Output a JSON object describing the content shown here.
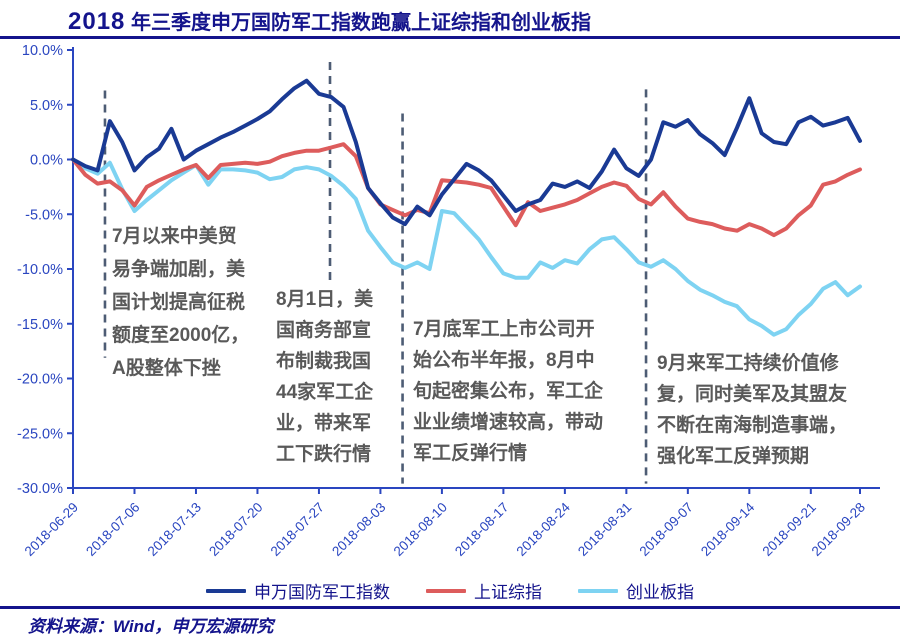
{
  "page": {
    "title": {
      "year": "2018",
      "rest": " 年三季度申万国防军工指数跑赢上证综指和创业板指"
    },
    "footer": {
      "source_label": "资料来源：Wind，申万宏源研究"
    }
  },
  "annotations": [
    {
      "text": "7月以来中美贸\n易争端加剧，美\n国计划提高征税\n额度至2000亿，\nA股整体下挫"
    },
    {
      "text": "8月1日，美\n国商务部宣\n布制裁我国\n44家军工企\n业，带来军\n工下跌行情"
    },
    {
      "text": "7月底军工上市公司开\n始公布半年报，8月中\n旬起密集公布，军工企\n业业绩增速较高，带动\n军工反弹行情"
    },
    {
      "text": "9月来军工持续价值修\n复，同时美军及其盟友\n不断在南海制造事端，\n强化军工反弹预期"
    }
  ],
  "chart_data": {
    "type": "line",
    "title": "2018年三季度申万国防军工指数跑赢上证综指和创业板指",
    "xlabel": "",
    "ylabel": "",
    "ylim": [
      -30,
      10
    ],
    "grid": false,
    "legend_position": "bottom",
    "axis_color": "#2A46C0",
    "event_line_color": "#4D5C74",
    "x": [
      "2018-06-29",
      "2018-07-02",
      "2018-07-03",
      "2018-07-04",
      "2018-07-05",
      "2018-07-06",
      "2018-07-09",
      "2018-07-10",
      "2018-07-11",
      "2018-07-12",
      "2018-07-13",
      "2018-07-16",
      "2018-07-17",
      "2018-07-18",
      "2018-07-19",
      "2018-07-20",
      "2018-07-23",
      "2018-07-24",
      "2018-07-25",
      "2018-07-26",
      "2018-07-27",
      "2018-07-30",
      "2018-07-31",
      "2018-08-01",
      "2018-08-02",
      "2018-08-03",
      "2018-08-06",
      "2018-08-07",
      "2018-08-08",
      "2018-08-09",
      "2018-08-10",
      "2018-08-13",
      "2018-08-14",
      "2018-08-15",
      "2018-08-16",
      "2018-08-17",
      "2018-08-20",
      "2018-08-21",
      "2018-08-22",
      "2018-08-23",
      "2018-08-24",
      "2018-08-27",
      "2018-08-28",
      "2018-08-29",
      "2018-08-30",
      "2018-08-31",
      "2018-09-03",
      "2018-09-04",
      "2018-09-05",
      "2018-09-06",
      "2018-09-07",
      "2018-09-10",
      "2018-09-11",
      "2018-09-12",
      "2018-09-13",
      "2018-09-14",
      "2018-09-17",
      "2018-09-18",
      "2018-09-19",
      "2018-09-20",
      "2018-09-21",
      "2018-09-25",
      "2018-09-26",
      "2018-09-27",
      "2018-09-28"
    ],
    "y_ticks": [
      {
        "value": 10,
        "label": "10.0%"
      },
      {
        "value": 5,
        "label": "5.0%"
      },
      {
        "value": 0,
        "label": "0.0%"
      },
      {
        "value": -5,
        "label": "-5.0%"
      },
      {
        "value": -10,
        "label": "-10.0%"
      },
      {
        "value": -15,
        "label": "-15.0%"
      },
      {
        "value": -20,
        "label": "-20.0%"
      },
      {
        "value": -25,
        "label": "-25.0%"
      },
      {
        "value": -30,
        "label": "-30.0%"
      }
    ],
    "x_tick_labels": [
      {
        "index": 0,
        "label": "2018-06-29"
      },
      {
        "index": 5,
        "label": "2018-07-06"
      },
      {
        "index": 10,
        "label": "2018-07-13"
      },
      {
        "index": 15,
        "label": "2018-07-20"
      },
      {
        "index": 20,
        "label": "2018-07-27"
      },
      {
        "index": 25,
        "label": "2018-08-03"
      },
      {
        "index": 30,
        "label": "2018-08-10"
      },
      {
        "index": 35,
        "label": "2018-08-17"
      },
      {
        "index": 40,
        "label": "2018-08-24"
      },
      {
        "index": 45,
        "label": "2018-08-31"
      },
      {
        "index": 50,
        "label": "2018-09-07"
      },
      {
        "index": 55,
        "label": "2018-09-14"
      },
      {
        "index": 60,
        "label": "2018-09-21"
      },
      {
        "index": 64,
        "label": "2018-09-28"
      }
    ],
    "event_lines": [
      {
        "index": 2.6,
        "v_top": 6.3,
        "v_bottom": -18.1
      },
      {
        "index": 20.9,
        "v_top": 8.9,
        "v_bottom": -11.2
      },
      {
        "index": 26.8,
        "v_top": 4.2,
        "v_bottom": -29.6
      },
      {
        "index": 46.6,
        "v_top": 6.4,
        "v_bottom": -29.6
      }
    ],
    "series": [
      {
        "name": "申万国防军工指数",
        "color": "#1A3A94",
        "values": [
          0.0,
          -0.6,
          -1.0,
          3.5,
          1.6,
          -1.0,
          0.2,
          1.0,
          2.8,
          0.0,
          0.8,
          1.4,
          2.0,
          2.5,
          3.1,
          3.7,
          4.4,
          5.5,
          6.5,
          7.2,
          6.0,
          5.7,
          4.8,
          1.6,
          -2.6,
          -4.0,
          -5.3,
          -5.9,
          -4.3,
          -5.1,
          -3.2,
          -1.8,
          -0.4,
          -1.0,
          -1.9,
          -3.3,
          -4.7,
          -4.1,
          -3.7,
          -2.2,
          -2.5,
          -2.0,
          -2.6,
          -1.1,
          0.9,
          -0.8,
          -1.5,
          0.0,
          3.4,
          3.0,
          3.6,
          2.3,
          1.5,
          0.4,
          2.9,
          5.6,
          2.4,
          1.6,
          1.4,
          3.4,
          3.9,
          3.1,
          3.4,
          3.8,
          1.7
        ]
      },
      {
        "name": "上证综指",
        "color": "#DD5C5C",
        "values": [
          0.0,
          -1.4,
          -2.2,
          -2.0,
          -2.8,
          -4.2,
          -2.5,
          -1.9,
          -1.4,
          -0.9,
          -0.5,
          -1.7,
          -0.5,
          -0.4,
          -0.3,
          -0.4,
          -0.2,
          0.3,
          0.6,
          0.8,
          0.8,
          1.1,
          1.4,
          0.3,
          -2.6,
          -4.1,
          -4.6,
          -5.1,
          -4.6,
          -4.9,
          -1.9,
          -2.0,
          -2.1,
          -2.3,
          -2.6,
          -4.3,
          -6.0,
          -3.9,
          -4.7,
          -4.4,
          -4.1,
          -3.7,
          -3.1,
          -2.5,
          -2.1,
          -2.4,
          -3.6,
          -4.1,
          -3.0,
          -4.3,
          -5.4,
          -5.7,
          -5.9,
          -6.3,
          -6.5,
          -5.9,
          -6.3,
          -6.9,
          -6.3,
          -5.1,
          -4.2,
          -2.3,
          -2.0,
          -1.4,
          -0.9
        ]
      },
      {
        "name": "创业板指",
        "color": "#7ED3F2",
        "values": [
          0.0,
          -0.8,
          -1.3,
          -0.3,
          -2.7,
          -4.7,
          -3.7,
          -2.8,
          -1.9,
          -1.2,
          -0.5,
          -2.3,
          -0.9,
          -0.9,
          -1.0,
          -1.2,
          -1.8,
          -1.6,
          -0.9,
          -0.7,
          -0.9,
          -1.5,
          -2.4,
          -3.6,
          -6.5,
          -8.0,
          -9.4,
          -9.9,
          -9.4,
          -10.0,
          -4.7,
          -4.9,
          -6.1,
          -7.3,
          -8.9,
          -10.4,
          -10.8,
          -10.8,
          -9.4,
          -9.9,
          -9.2,
          -9.5,
          -8.2,
          -7.3,
          -7.1,
          -8.2,
          -9.4,
          -9.8,
          -9.2,
          -10.0,
          -11.1,
          -11.9,
          -12.4,
          -13.0,
          -13.4,
          -14.6,
          -15.2,
          -16.0,
          -15.5,
          -14.2,
          -13.2,
          -11.8,
          -11.2,
          -12.4,
          -11.6
        ]
      }
    ]
  }
}
